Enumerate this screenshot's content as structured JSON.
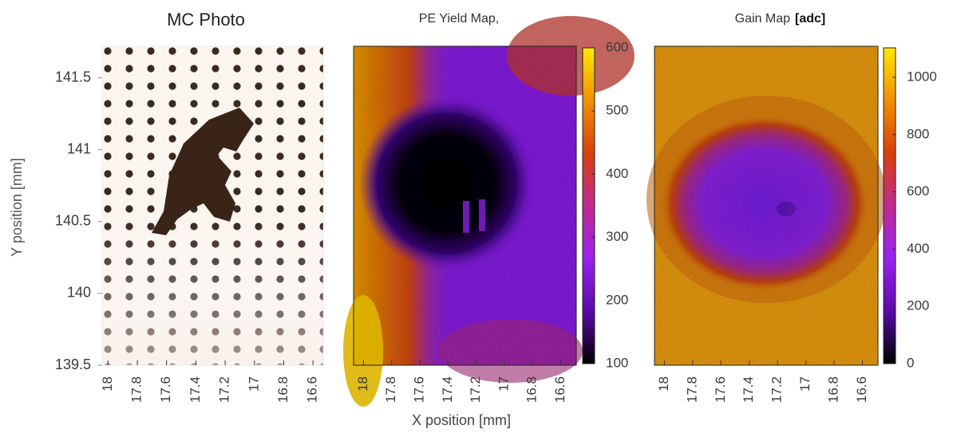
{
  "chart_data": [
    {
      "type": "image",
      "title": "MC Photo",
      "ylabel": "Y position [mm]",
      "xlim": [
        18.04,
        16.53
      ],
      "xticks": [
        18,
        17.8,
        17.6,
        17.4,
        17.2,
        17,
        16.8,
        16.6
      ],
      "ylim": [
        139.5,
        141.72
      ],
      "yticks": [
        139.5,
        140,
        140.5,
        141,
        141.5
      ]
    },
    {
      "type": "heatmap",
      "title": "PE Yield Map,",
      "xlabel": "X position [mm]",
      "xlim": [
        18.07,
        16.49
      ],
      "xticks": [
        18,
        17.8,
        17.6,
        17.4,
        17.2,
        17,
        16.8,
        16.6
      ],
      "clim": [
        100,
        600
      ],
      "cticks": [
        100,
        200,
        300,
        400,
        500,
        600
      ],
      "colormap": [
        "#000000",
        "#5a0aa8",
        "#9a22f0",
        "#c02a90",
        "#d8400a",
        "#f09000",
        "#ffe800"
      ]
    },
    {
      "type": "heatmap",
      "title": "Gain Map",
      "units": "[adc]",
      "xlim": [
        18.07,
        16.49
      ],
      "xticks": [
        18,
        17.8,
        17.6,
        17.4,
        17.2,
        17,
        16.8,
        16.6
      ],
      "clim": [
        0,
        1103
      ],
      "cticks": [
        0,
        200,
        400,
        600,
        800,
        1000
      ],
      "colormap": [
        "#000000",
        "#5a0aa8",
        "#9a22f0",
        "#c02a90",
        "#d8400a",
        "#f09000",
        "#ffe800"
      ]
    }
  ]
}
